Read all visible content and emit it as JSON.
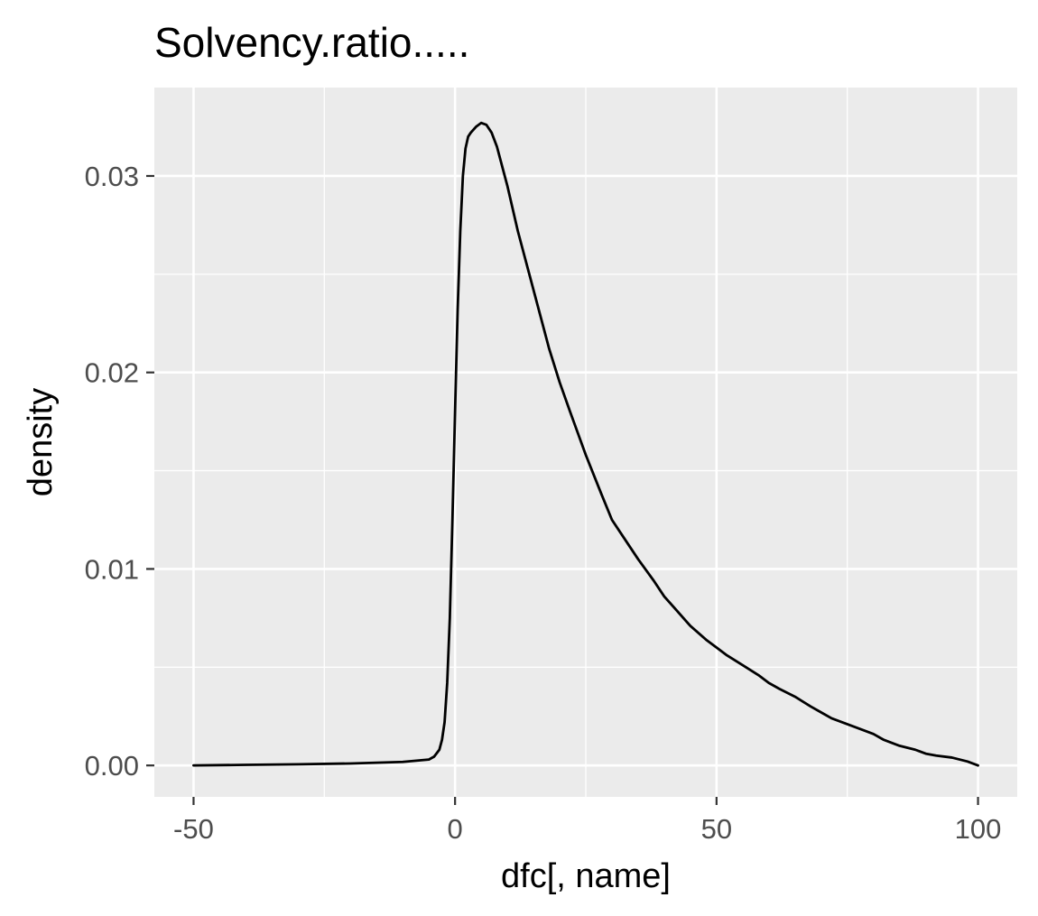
{
  "chart_data": {
    "type": "line",
    "title": "Solvency.ratio.....",
    "xlabel": "dfc[, name]",
    "ylabel": "density",
    "xlim": [
      -57.5,
      107.5
    ],
    "ylim": [
      -0.0016,
      0.0345
    ],
    "x_ticks": [
      -50,
      0,
      50,
      100
    ],
    "x_tick_labels": [
      "-50",
      "0",
      "50",
      "100"
    ],
    "y_ticks": [
      0,
      0.01,
      0.02,
      0.03
    ],
    "y_tick_labels": [
      "0.00",
      "0.01",
      "0.02",
      "0.03"
    ],
    "x_minor_ticks": [
      -25,
      25,
      75
    ],
    "y_minor_ticks": [
      0.005,
      0.015,
      0.025
    ],
    "grid": true,
    "legend": "none",
    "colors": {
      "panel": "#ebebeb",
      "grid": "#ffffff",
      "line": "#000000",
      "tick_text": "#4d4d4d"
    },
    "series": [
      {
        "x": [
          -50,
          -40,
          -30,
          -20,
          -10,
          -5,
          -4,
          -3,
          -2.5,
          -2,
          -1.5,
          -1,
          -0.5,
          0,
          0.5,
          1,
          1.5,
          2,
          2.5,
          3,
          4,
          5,
          6,
          7,
          8,
          9,
          10,
          12,
          14,
          16,
          18,
          20,
          22,
          25,
          28,
          30,
          32,
          35,
          38,
          40,
          42,
          45,
          48,
          50,
          52,
          55,
          58,
          60,
          62,
          65,
          68,
          70,
          72,
          75,
          78,
          80,
          82,
          85,
          88,
          90,
          92,
          95,
          98,
          100
        ],
        "y": [
          0.0,
          3e-05,
          6e-05,
          0.0001,
          0.00018,
          0.0003,
          0.00045,
          0.0008,
          0.0013,
          0.0022,
          0.0042,
          0.0075,
          0.0125,
          0.018,
          0.0232,
          0.0272,
          0.03,
          0.0314,
          0.032,
          0.0322,
          0.0325,
          0.0327,
          0.0326,
          0.0322,
          0.0315,
          0.0305,
          0.0295,
          0.0272,
          0.0252,
          0.0232,
          0.0212,
          0.0195,
          0.018,
          0.0158,
          0.0138,
          0.0125,
          0.0117,
          0.0105,
          0.0094,
          0.0086,
          0.008,
          0.0071,
          0.0064,
          0.006,
          0.0056,
          0.0051,
          0.0046,
          0.0042,
          0.0039,
          0.0035,
          0.003,
          0.0027,
          0.0024,
          0.0021,
          0.0018,
          0.0016,
          0.0013,
          0.001,
          0.0008,
          0.0006,
          0.0005,
          0.0004,
          0.0002,
          0.0
        ]
      }
    ]
  }
}
